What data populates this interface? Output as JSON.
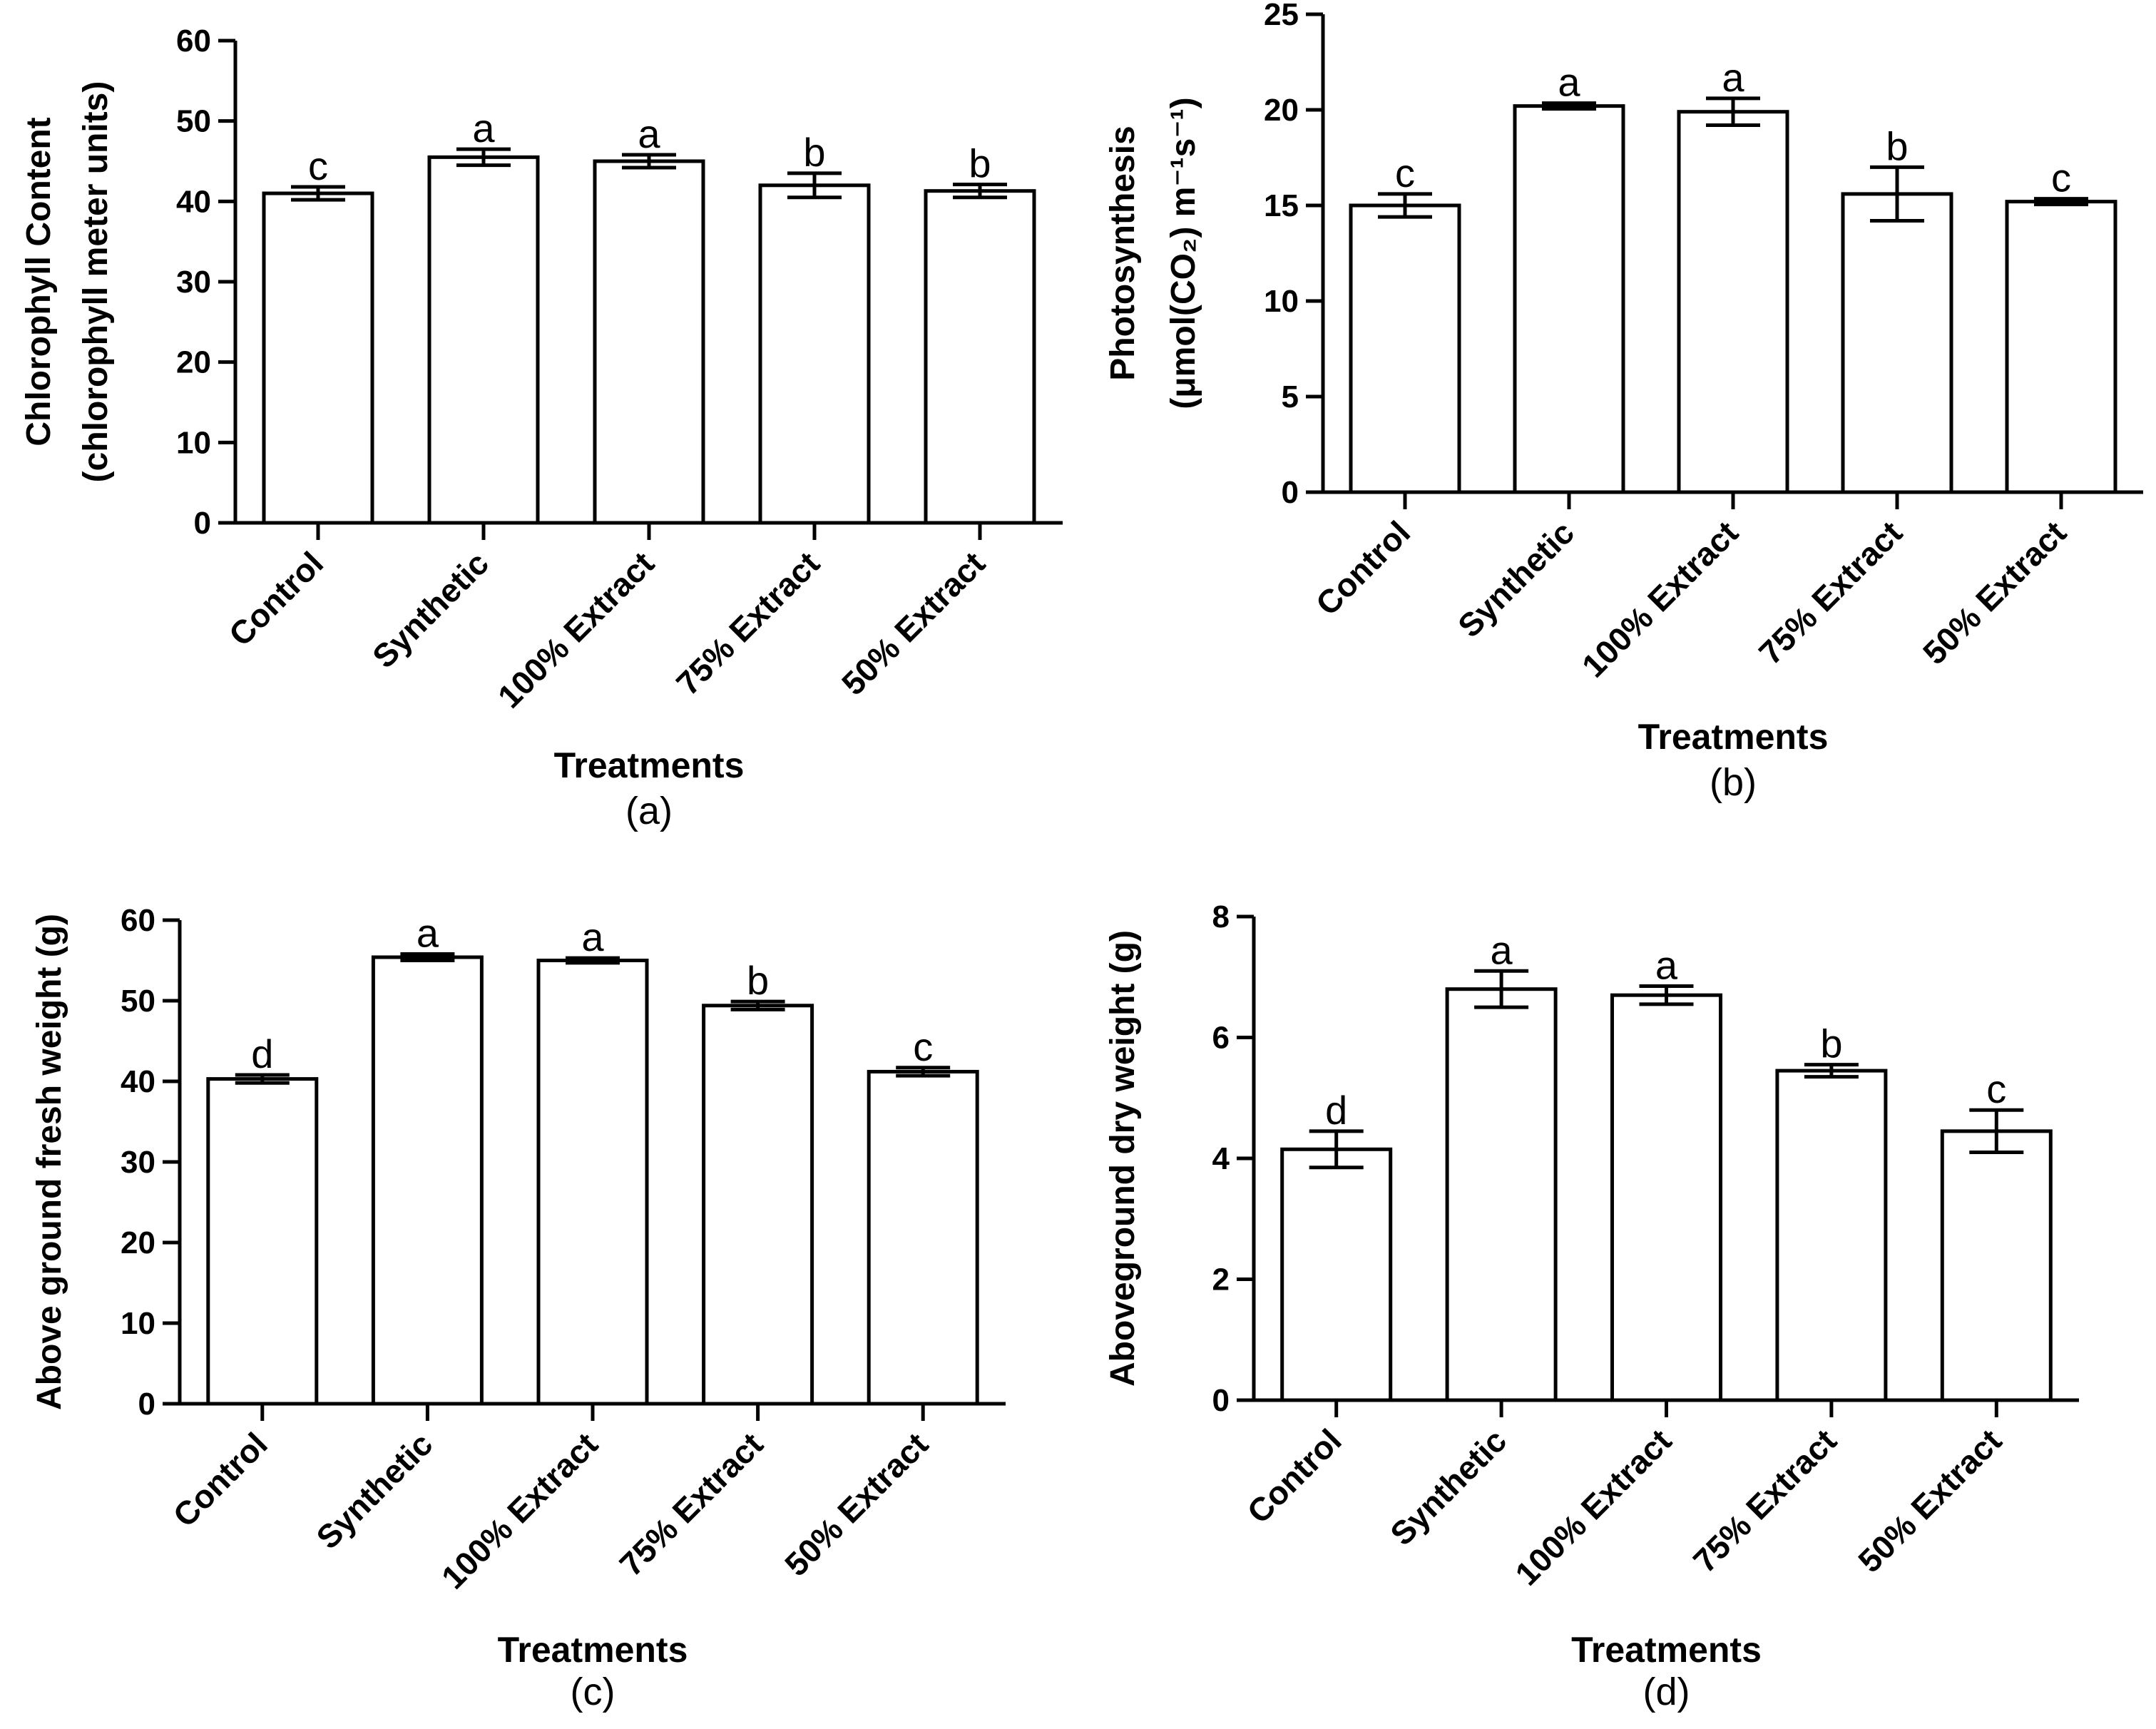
{
  "chart_data": [
    {
      "type": "bar",
      "panel": "(a)",
      "categories": [
        "Control",
        "Synthetic",
        "100% Extract",
        "75% Extract",
        "50% Extract"
      ],
      "values": [
        41,
        45.5,
        45,
        42,
        41.3
      ],
      "errors": [
        0.8,
        1.0,
        0.8,
        1.5,
        0.8
      ],
      "significance": [
        "c",
        "a",
        "a",
        "b",
        "b"
      ],
      "ylabel_lines": [
        "Chlorophyll Content",
        "(chlorophyll meter units)"
      ],
      "xlabel": "Treatments",
      "ylim": [
        0,
        60
      ],
      "yticks": [
        "0",
        "10",
        "20",
        "30",
        "40",
        "50",
        "60"
      ]
    },
    {
      "type": "bar",
      "panel": "(b)",
      "categories": [
        "Control",
        "Synthetic",
        "100% Extract",
        "75% Extract",
        "50% Extract"
      ],
      "values": [
        15,
        20.2,
        19.9,
        15.6,
        15.2
      ],
      "errors": [
        0.6,
        0.15,
        0.7,
        1.4,
        0.15
      ],
      "significance": [
        "c",
        "a",
        "a",
        "b",
        "c"
      ],
      "ylabel_lines": [
        "Photosynthesis",
        "(μmol(CO₂) m⁻¹s⁻¹)"
      ],
      "xlabel": "Treatments",
      "ylim": [
        0,
        25
      ],
      "yticks": [
        "0",
        "5",
        "10",
        "15",
        "20",
        "25"
      ]
    },
    {
      "type": "bar",
      "panel": "(c)",
      "categories": [
        "Control",
        "Synthetic",
        "100% Extract",
        "75% Extract",
        "50% Extract"
      ],
      "values": [
        40.3,
        55.4,
        55,
        49.4,
        41.2
      ],
      "errors": [
        0.5,
        0.4,
        0.3,
        0.5,
        0.5
      ],
      "significance": [
        "d",
        "a",
        "a",
        "b",
        "c"
      ],
      "ylabel_lines": [
        "Above ground fresh weight (g)"
      ],
      "xlabel": "Treatments",
      "ylim": [
        0,
        60
      ],
      "yticks": [
        "0",
        "10",
        "20",
        "30",
        "40",
        "50",
        "60"
      ]
    },
    {
      "type": "bar",
      "panel": "(d)",
      "categories": [
        "Control",
        "Synthetic",
        "100% Extract",
        "75% Extract",
        "50% Extract"
      ],
      "values": [
        4.15,
        6.8,
        6.7,
        5.45,
        4.45
      ],
      "errors": [
        0.3,
        0.3,
        0.15,
        0.1,
        0.35
      ],
      "significance": [
        "d",
        "a",
        "a",
        "b",
        "c"
      ],
      "ylabel_lines": [
        "Aboveground dry weight (g)"
      ],
      "xlabel": "Treatments",
      "ylim": [
        0,
        8
      ],
      "yticks": [
        "0",
        "2",
        "4",
        "6",
        "8"
      ]
    }
  ]
}
